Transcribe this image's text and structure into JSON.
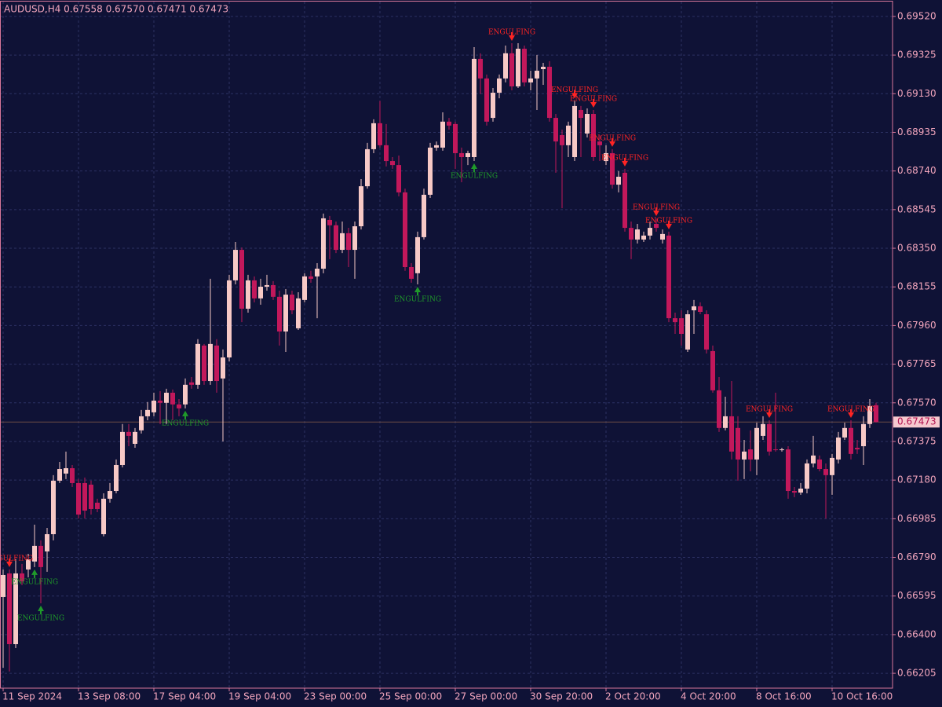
{
  "chart_data": {
    "type": "candlestick",
    "info": "AUDUSD,H4  0.67558 0.67570 0.67471 0.67473",
    "bull_color": "#f7c9c6",
    "bear_color": "#c2185b",
    "ylim": [
      0.6613,
      0.69595
    ],
    "yticks": [
      0.66205,
      {
        "value": 0.664,
        "label": "0.66400"
      },
      0.66595,
      {
        "value": 0.6679,
        "label": "0.66790"
      },
      0.66985,
      {
        "value": 0.6718,
        "label": "0.67180"
      },
      0.67375,
      {
        "value": 0.6757,
        "label": "0.67570"
      },
      0.67765,
      {
        "value": 0.6796,
        "label": "0.67960"
      },
      0.68155,
      {
        "value": 0.6835,
        "label": "0.68350"
      },
      0.68545,
      {
        "value": 0.6874,
        "label": "0.68740"
      },
      0.68935,
      {
        "value": 0.6913,
        "label": "0.69130"
      },
      0.69325,
      {
        "value": 0.6952,
        "label": "0.69520"
      }
    ],
    "grid": true,
    "bid": {
      "value": 0.67473,
      "label": "0.67473"
    },
    "categories": [
      "11 Sep 2024",
      null,
      null,
      null,
      null,
      null,
      null,
      null,
      null,
      null,
      null,
      null,
      "13 Sep 08:00",
      null,
      null,
      null,
      null,
      null,
      null,
      null,
      null,
      null,
      null,
      null,
      "17 Sep 04:00",
      null,
      null,
      null,
      null,
      null,
      null,
      null,
      null,
      null,
      null,
      null,
      "19 Sep 04:00",
      null,
      null,
      null,
      null,
      null,
      null,
      null,
      null,
      null,
      null,
      null,
      "23 Sep 00:00",
      null,
      null,
      null,
      null,
      null,
      null,
      null,
      null,
      null,
      null,
      null,
      "25 Sep 00:00",
      null,
      null,
      null,
      null,
      null,
      null,
      null,
      null,
      null,
      null,
      null,
      "27 Sep 00:00",
      null,
      null,
      null,
      null,
      null,
      null,
      null,
      null,
      null,
      null,
      null,
      "30 Sep 20:00",
      null,
      null,
      null,
      null,
      null,
      null,
      null,
      null,
      null,
      null,
      null,
      "2 Oct 20:00",
      null,
      null,
      null,
      null,
      null,
      null,
      null,
      null,
      null,
      null,
      null,
      "4 Oct 20:00",
      null,
      null,
      null,
      null,
      null,
      null,
      null,
      null,
      null,
      null,
      null,
      "8 Oct 16:00",
      null,
      null,
      null,
      null,
      null,
      null,
      null,
      null,
      null,
      null,
      null,
      "10 Oct 16:00",
      null,
      null,
      null,
      null,
      null,
      null,
      null
    ],
    "candles": [
      [
        0.6659,
        0.66729,
        0.66233,
        0.66701
      ],
      [
        0.66709,
        0.66729,
        0.66214,
        0.66352
      ],
      [
        0.66352,
        0.6678,
        0.66332,
        0.66709
      ],
      [
        0.66709,
        0.66757,
        0.6665,
        0.66669
      ],
      [
        0.66729,
        0.66808,
        0.66689,
        0.6678
      ],
      [
        0.66769,
        0.66955,
        0.66741,
        0.66848
      ],
      [
        0.66848,
        0.66876,
        0.66558,
        0.66741
      ],
      [
        0.6682,
        0.66939,
        0.66717,
        0.66907
      ],
      [
        0.66907,
        0.67205,
        0.66876,
        0.67177
      ],
      [
        0.67177,
        0.67272,
        0.67165,
        0.67236
      ],
      [
        0.67213,
        0.67324,
        0.67185,
        0.6724
      ],
      [
        0.6724,
        0.67256,
        0.67145,
        0.67165
      ],
      [
        0.67165,
        0.67185,
        0.66986,
        0.67006
      ],
      [
        0.67165,
        0.67193,
        0.66986,
        0.67026
      ],
      [
        0.67157,
        0.67177,
        0.67006,
        0.67034
      ],
      [
        0.67066,
        0.67086,
        0.67018,
        0.67034
      ],
      [
        0.66907,
        0.67113,
        0.66896,
        0.67086
      ],
      [
        0.67086,
        0.67165,
        0.67066,
        0.67125
      ],
      [
        0.67125,
        0.67284,
        0.67113,
        0.67256
      ],
      [
        0.67256,
        0.67463,
        0.67244,
        0.67423
      ],
      [
        0.67423,
        0.67463,
        0.67351,
        0.67403
      ],
      [
        0.67363,
        0.67443,
        0.67343,
        0.67423
      ],
      [
        0.67431,
        0.67534,
        0.67415,
        0.67502
      ],
      [
        0.67502,
        0.67574,
        0.67482,
        0.67534
      ],
      [
        0.67522,
        0.67621,
        0.67502,
        0.67581
      ],
      [
        0.67581,
        0.67629,
        0.67463,
        0.6757
      ],
      [
        0.6757,
        0.67641,
        0.67463,
        0.67621
      ],
      [
        0.67621,
        0.67637,
        0.67482,
        0.67562
      ],
      [
        0.67562,
        0.67589,
        0.67502,
        0.67542
      ],
      [
        0.67562,
        0.67693,
        0.67542,
        0.67661
      ],
      [
        0.67673,
        0.677,
        0.67641,
        0.67661
      ],
      [
        0.67661,
        0.67891,
        0.67641,
        0.67867
      ],
      [
        0.67859,
        0.67867,
        0.67661,
        0.6768
      ],
      [
        0.6768,
        0.68196,
        0.67661,
        0.67867
      ],
      [
        0.67859,
        0.67891,
        0.67621,
        0.6768
      ],
      [
        0.67693,
        0.67839,
        0.67375,
        0.67799
      ],
      [
        0.67799,
        0.68216,
        0.67779,
        0.68188
      ],
      [
        0.68188,
        0.68382,
        0.68168,
        0.68342
      ],
      [
        0.68342,
        0.68354,
        0.67977,
        0.68045
      ],
      [
        0.68045,
        0.68216,
        0.68025,
        0.68188
      ],
      [
        0.68188,
        0.68208,
        0.68077,
        0.68097
      ],
      [
        0.68097,
        0.68196,
        0.68065,
        0.68156
      ],
      [
        0.68156,
        0.68216,
        0.68136,
        0.68164
      ],
      [
        0.68164,
        0.68184,
        0.68089,
        0.68105
      ],
      [
        0.68105,
        0.68136,
        0.67859,
        0.6793
      ],
      [
        0.6793,
        0.68144,
        0.67827,
        0.68116
      ],
      [
        0.68116,
        0.68136,
        0.68017,
        0.68037
      ],
      [
        0.67946,
        0.68128,
        0.67938,
        0.68097
      ],
      [
        0.68089,
        0.68224,
        0.68077,
        0.68208
      ],
      [
        0.68208,
        0.68236,
        0.68176,
        0.68196
      ],
      [
        0.68208,
        0.68275,
        0.67997,
        0.68247
      ],
      [
        0.68247,
        0.68525,
        0.68224,
        0.68501
      ],
      [
        0.68493,
        0.68513,
        0.68295,
        0.68466
      ],
      [
        0.68466,
        0.68485,
        0.68326,
        0.68342
      ],
      [
        0.68342,
        0.68485,
        0.68326,
        0.68426
      ],
      [
        0.68426,
        0.68453,
        0.68255,
        0.68342
      ],
      [
        0.68342,
        0.68485,
        0.68196,
        0.68461
      ],
      [
        0.68461,
        0.68699,
        0.68445,
        0.68663
      ],
      [
        0.68663,
        0.68882,
        0.68651,
        0.6885
      ],
      [
        0.6885,
        0.69001,
        0.6883,
        0.68981
      ],
      [
        0.68981,
        0.69094,
        0.68858,
        0.6887
      ],
      [
        0.6887,
        0.68977,
        0.68763,
        0.6879
      ],
      [
        0.6879,
        0.6881,
        0.68751,
        0.6877
      ],
      [
        0.6877,
        0.68818,
        0.68612,
        0.68632
      ],
      [
        0.68632,
        0.68651,
        0.68236,
        0.68255
      ],
      [
        0.68255,
        0.68275,
        0.68176,
        0.68196
      ],
      [
        0.68224,
        0.68434,
        0.68168,
        0.68406
      ],
      [
        0.68406,
        0.68651,
        0.68394,
        0.6862
      ],
      [
        0.6862,
        0.68882,
        0.68604,
        0.68858
      ],
      [
        0.68858,
        0.68889,
        0.68842,
        0.6887
      ],
      [
        0.68858,
        0.69036,
        0.68842,
        0.68989
      ],
      [
        0.68989,
        0.69008,
        0.68949,
        0.68969
      ],
      [
        0.68977,
        0.68989,
        0.68751,
        0.6883
      ],
      [
        0.6883,
        0.68858,
        0.68683,
        0.6881
      ],
      [
        0.6881,
        0.68842,
        0.6877,
        0.6883
      ],
      [
        0.6881,
        0.69365,
        0.6879,
        0.69306
      ],
      [
        0.69306,
        0.69334,
        0.69128,
        0.69207
      ],
      [
        0.69207,
        0.69227,
        0.68969,
        0.68989
      ],
      [
        0.69008,
        0.69159,
        0.68989,
        0.69135
      ],
      [
        0.69135,
        0.69227,
        0.69107,
        0.69207
      ],
      [
        0.69207,
        0.69373,
        0.69187,
        0.69334
      ],
      [
        0.69334,
        0.69385,
        0.69147,
        0.69167
      ],
      [
        0.69167,
        0.69385,
        0.69159,
        0.69357
      ],
      [
        0.69357,
        0.69373,
        0.69167,
        0.69187
      ],
      [
        0.69187,
        0.69246,
        0.69147,
        0.69207
      ],
      [
        0.69207,
        0.69326,
        0.69048,
        0.69246
      ],
      [
        0.69254,
        0.69286,
        0.69175,
        0.69266
      ],
      [
        0.69266,
        0.69294,
        0.68989,
        0.69008
      ],
      [
        0.69008,
        0.69028,
        0.68731,
        0.68889
      ],
      [
        0.68921,
        0.68949,
        0.68552,
        0.6887
      ],
      [
        0.6887,
        0.68989,
        0.6881,
        0.68969
      ],
      [
        0.6881,
        0.69094,
        0.6879,
        0.69068
      ],
      [
        0.69048,
        0.69068,
        0.6881,
        0.69008
      ],
      [
        0.68929,
        0.69056,
        0.68909,
        0.69028
      ],
      [
        0.69028,
        0.69048,
        0.6879,
        0.6881
      ],
      [
        0.68889,
        0.68921,
        0.6879,
        0.6887
      ],
      [
        0.6879,
        0.6887,
        0.6877,
        0.6883
      ],
      [
        0.6883,
        0.6885,
        0.68651,
        0.68671
      ],
      [
        0.68671,
        0.68739,
        0.68632,
        0.68711
      ],
      [
        0.68731,
        0.68751,
        0.68434,
        0.68453
      ],
      [
        0.68453,
        0.68485,
        0.68295,
        0.68394
      ],
      [
        0.68394,
        0.68473,
        0.68374,
        0.68445
      ],
      [
        0.68394,
        0.68434,
        0.68382,
        0.68414
      ],
      [
        0.68414,
        0.68485,
        0.68394,
        0.68453
      ],
      [
        0.68473,
        0.68501,
        0.68434,
        0.68453
      ],
      [
        0.68394,
        0.68445,
        0.68374,
        0.68422
      ],
      [
        0.68414,
        0.68434,
        0.67977,
        0.67997
      ],
      [
        0.67997,
        0.68025,
        0.67918,
        0.67977
      ],
      [
        0.67997,
        0.68037,
        0.67859,
        0.67918
      ],
      [
        0.67839,
        0.68037,
        0.67827,
        0.68017
      ],
      [
        0.68037,
        0.68089,
        0.67918,
        0.68057
      ],
      [
        0.68057,
        0.68077,
        0.68017,
        0.68029
      ],
      [
        0.68017,
        0.68037,
        0.67819,
        0.67839
      ],
      [
        0.67831,
        0.67859,
        0.67621,
        0.67633
      ],
      [
        0.67633,
        0.677,
        0.67423,
        0.67443
      ],
      [
        0.67443,
        0.67601,
        0.67431,
        0.67502
      ],
      [
        0.67502,
        0.6768,
        0.67284,
        0.67324
      ],
      [
        0.67443,
        0.67502,
        0.67177,
        0.67284
      ],
      [
        0.67284,
        0.67383,
        0.67185,
        0.67324
      ],
      [
        0.67335,
        0.67431,
        0.67224,
        0.67284
      ],
      [
        0.67284,
        0.6747,
        0.67205,
        0.67443
      ],
      [
        0.67403,
        0.67502,
        0.67383,
        0.67463
      ],
      [
        0.67463,
        0.67482,
        0.67304,
        0.67324
      ],
      [
        0.67335,
        0.67621,
        0.67324,
        0.67331
      ],
      [
        0.67331,
        0.67343,
        0.67324,
        0.67335
      ],
      [
        0.67335,
        0.67351,
        0.67086,
        0.67125
      ],
      [
        0.67125,
        0.67145,
        0.67094,
        0.67117
      ],
      [
        0.67117,
        0.67165,
        0.67106,
        0.67137
      ],
      [
        0.67137,
        0.67284,
        0.67113,
        0.67264
      ],
      [
        0.67264,
        0.67403,
        0.67244,
        0.67304
      ],
      [
        0.67284,
        0.67304,
        0.67224,
        0.67236
      ],
      [
        0.67236,
        0.67264,
        0.66986,
        0.67205
      ],
      [
        0.67205,
        0.67312,
        0.67106,
        0.67292
      ],
      [
        0.67284,
        0.67423,
        0.67264,
        0.67395
      ],
      [
        0.67395,
        0.6747,
        0.67383,
        0.67443
      ],
      [
        0.67443,
        0.67482,
        0.67284,
        0.67312
      ],
      [
        0.67343,
        0.67383,
        0.67312,
        0.67335
      ],
      [
        0.67351,
        0.67502,
        0.67256,
        0.67463
      ],
      [
        0.67463,
        0.67589,
        0.67443,
        0.67553
      ],
      [
        0.67558,
        0.6757,
        0.67471,
        0.67473
      ]
    ],
    "signals": [
      {
        "index": 1,
        "direction": "down",
        "label": "ENGULFING"
      },
      {
        "index": 5,
        "direction": "up",
        "label": "ENGULFING"
      },
      {
        "index": 6,
        "direction": "up",
        "label": "ENGULFING"
      },
      {
        "index": 29,
        "direction": "up",
        "label": "ENGULFING"
      },
      {
        "index": 66,
        "direction": "up",
        "label": "ENGULFING"
      },
      {
        "index": 75,
        "direction": "up",
        "label": "ENGULFING"
      },
      {
        "index": 81,
        "direction": "down",
        "label": "ENGULFING"
      },
      {
        "index": 91,
        "direction": "down",
        "label": "ENGULFING"
      },
      {
        "index": 94,
        "direction": "down",
        "label": "ENGULFING"
      },
      {
        "index": 97,
        "direction": "down",
        "label": "ENGULFING"
      },
      {
        "index": 99,
        "direction": "down",
        "label": "ENGULFING"
      },
      {
        "index": 104,
        "direction": "down",
        "label": "ENGULFING"
      },
      {
        "index": 106,
        "direction": "down",
        "label": "ENGULFING"
      },
      {
        "index": 122,
        "direction": "down",
        "label": "ENGULFING"
      },
      {
        "index": 135,
        "direction": "down",
        "label": "ENGULFING"
      }
    ],
    "signal_colors": {
      "up": "#1f9a2a",
      "down": "#ff2424"
    }
  }
}
